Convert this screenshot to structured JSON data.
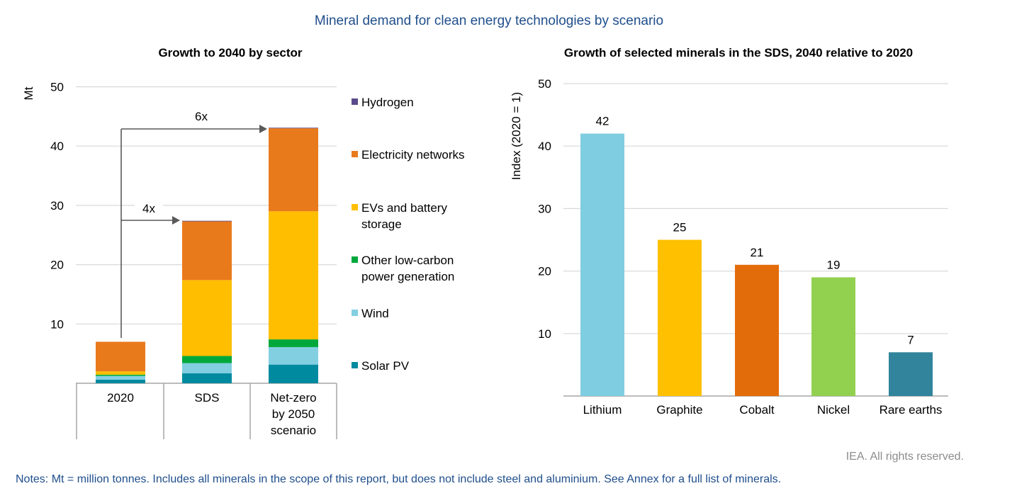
{
  "title": "Mineral demand for clean energy technologies by scenario",
  "chart_data": [
    {
      "type": "bar",
      "stacked": true,
      "title": "Growth to 2040 by sector",
      "ylabel": "Mt",
      "ylim": [
        0,
        50
      ],
      "yticks": [
        "10",
        "20",
        "30",
        "40",
        "50"
      ],
      "grid": true,
      "legend_position": "right",
      "categories": [
        "2020",
        "SDS",
        "Net-zero by 2050 scenario"
      ],
      "category_lines": [
        [
          "2020"
        ],
        [
          "SDS"
        ],
        [
          "Net-zero",
          "by 2050",
          "scenario"
        ]
      ],
      "series": [
        {
          "name": "Solar PV",
          "color": "#008aa0",
          "values": [
            0.6,
            1.7,
            3.15
          ]
        },
        {
          "name": "Wind",
          "color": "#82cfe1",
          "values": [
            0.65,
            1.7,
            2.95
          ]
        },
        {
          "name": "Other low-carbon power generation",
          "legend_lines": [
            "Other low-carbon",
            "power generation"
          ],
          "color": "#00a83c",
          "values": [
            0.2,
            1.2,
            1.3
          ]
        },
        {
          "name": "EVs and battery storage",
          "legend_lines": [
            "EVs and battery",
            "storage"
          ],
          "color": "#ffbe00",
          "values": [
            0.55,
            12.8,
            21.6
          ]
        },
        {
          "name": "Electricity networks",
          "color": "#e97a1c",
          "values": [
            5.0,
            9.9,
            14.0
          ]
        },
        {
          "name": "Hydrogen",
          "color": "#5b4a8c",
          "values": [
            0.0,
            0.1,
            0.1
          ]
        }
      ],
      "annotations": [
        {
          "text": "4x",
          "from": "2020",
          "to": "SDS"
        },
        {
          "text": "6x",
          "from": "2020",
          "to": "Net-zero by 2050 scenario"
        }
      ]
    },
    {
      "type": "bar",
      "title": "Growth of selected minerals in the SDS, 2040 relative to 2020",
      "ylabel": "Index (2020 = 1)",
      "ylim": [
        0,
        50
      ],
      "yticks": [
        "10",
        "20",
        "30",
        "40",
        "50"
      ],
      "grid": true,
      "categories": [
        "Lithium",
        "Graphite",
        "Cobalt",
        "Nickel",
        "Rare earths"
      ],
      "values": [
        42,
        25,
        21,
        19,
        7
      ],
      "data_labels": [
        "42",
        "25",
        "21",
        "19",
        "7"
      ],
      "colors": [
        "#7fcde0",
        "#ffc000",
        "#e36c0a",
        "#92d050",
        "#31849b"
      ]
    }
  ],
  "footer": {
    "credit": "IEA. All rights reserved.",
    "notes": "Notes: Mt = million tonnes. Includes all minerals in the scope of this report, but does not include steel and aluminium. See Annex for a full list of minerals."
  }
}
